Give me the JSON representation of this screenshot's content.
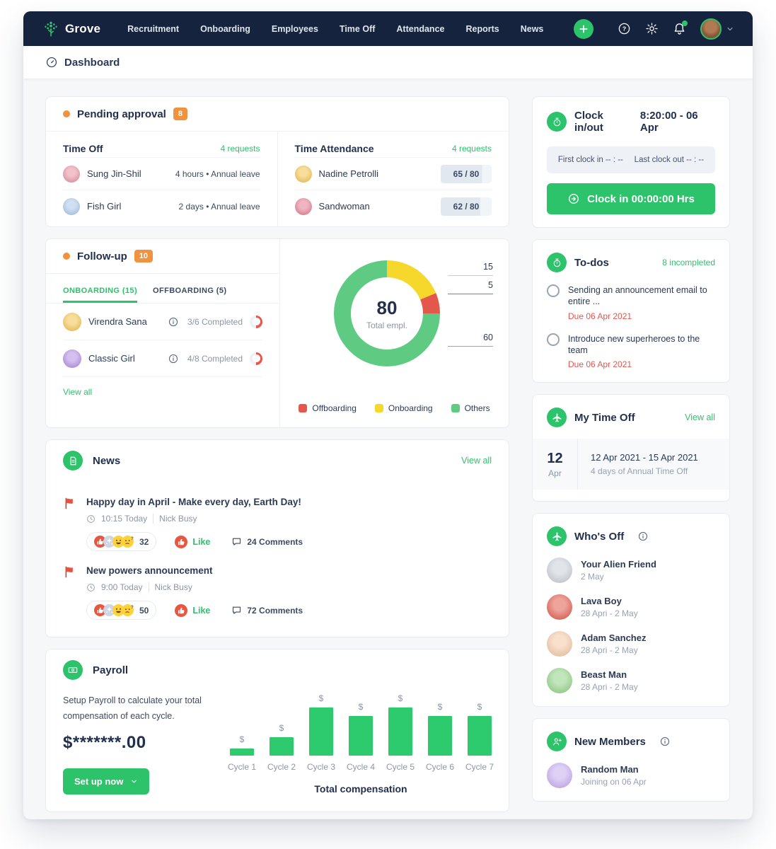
{
  "nav": {
    "brand": "Grove",
    "items": [
      "Recruitment",
      "Onboarding",
      "Employees",
      "Time Off",
      "Attendance",
      "Reports",
      "News"
    ]
  },
  "breadcrumb": {
    "title": "Dashboard"
  },
  "pending_approval": {
    "title": "Pending approval",
    "badge": "8",
    "time_off": {
      "title": "Time Off",
      "count_label": "4 requests",
      "rows": [
        {
          "name": "Sung Jin-Shil",
          "detail": "4 hours • Annual leave",
          "avatar_color": "#e58fa0"
        },
        {
          "name": "Fish Girl",
          "detail": "2 days • Annual leave",
          "avatar_color": "#a9c6e8"
        }
      ]
    },
    "time_attendance": {
      "title": "Time Attendance",
      "count_label": "4 requests",
      "rows": [
        {
          "name": "Nadine Petrolli",
          "value": "65 / 80",
          "pct": 81,
          "avatar_color": "#f2c24b"
        },
        {
          "name": "Sandwoman",
          "value": "62 / 80",
          "pct": 78,
          "avatar_color": "#e2798f"
        }
      ]
    }
  },
  "follow_up": {
    "title": "Follow-up",
    "badge": "10",
    "tabs": [
      {
        "label": "ONBOARDING (15)",
        "active": true
      },
      {
        "label": "OFFBOARDING (5)",
        "active": false
      }
    ],
    "rows": [
      {
        "name": "Virendra Sana",
        "progress_label": "3/6 Completed",
        "pct": 50,
        "avatar_color": "#f2c24b"
      },
      {
        "name": "Classic Girl",
        "progress_label": "4/8 Completed",
        "pct": 50,
        "avatar_color": "#b08ae0"
      }
    ],
    "view_all": "View all"
  },
  "news": {
    "title": "News",
    "view_all": "View all",
    "posts": [
      {
        "title": "Happy day in April - Make every day, Earth Day!",
        "time": "10:15 Today",
        "author": "Nick Busy",
        "reaction_count": "32",
        "like_label": "Like",
        "comments_label": "24 Comments",
        "reaction_emojis": [
          "thumbs-up",
          "confetti",
          "grinning",
          "thinking"
        ]
      },
      {
        "title": "New powers announcement",
        "time": "9:00 Today",
        "author": "Nick Busy",
        "reaction_count": "50",
        "like_label": "Like",
        "comments_label": "72 Comments",
        "reaction_emojis": [
          "thumbs-up",
          "confetti",
          "grinning",
          "thinking"
        ]
      }
    ]
  },
  "payroll": {
    "title": "Payroll",
    "description": "Setup Payroll to calculate your total compensation of each cycle.",
    "amount": "$*******.00",
    "button_label": "Set up now"
  },
  "clock": {
    "title": "Clock in/out",
    "time_label": "8:20:00 - 06 Apr",
    "first_clock_in": "First clock in -- : --",
    "last_clock_out": "Last clock out -- : --",
    "button_label": "Clock in 00:00:00 Hrs"
  },
  "todos": {
    "title": "To-dos",
    "status_label": "8 incompleted",
    "items": [
      {
        "text": "Sending an announcement email to entire ...",
        "due": "Due 06 Apr 2021"
      },
      {
        "text": "Introduce new superheroes to the team",
        "due": "Due 06 Apr 2021"
      }
    ]
  },
  "my_time_off": {
    "title": "My Time Off",
    "view_all": "View all",
    "entry": {
      "day": "12",
      "month": "Apr",
      "range": "12 Apr 2021 - 15 Apr 2021",
      "detail": "4 days of Annual Time Off"
    }
  },
  "whos_off": {
    "title": "Who's Off",
    "rows": [
      {
        "name": "Your Alien Friend",
        "dates": "2 May",
        "avatar_color": "#c9ced6"
      },
      {
        "name": "Lava Boy",
        "dates": "28 Apri - 2 May",
        "avatar_color": "#e05749"
      },
      {
        "name": "Adam Sanchez",
        "dates": "28 Apri - 2 May",
        "avatar_color": "#f2c7a3"
      },
      {
        "name": "Beast Man",
        "dates": "28 Apri - 2 May",
        "avatar_color": "#8fd184"
      }
    ]
  },
  "new_members": {
    "title": "New Members",
    "rows": [
      {
        "name": "Random Man",
        "detail": "Joining on 06 Apr",
        "avatar_color": "#c5a9ef"
      }
    ]
  },
  "colors": {
    "brand_green": "#2CC36B",
    "nav_navy": "#16233E",
    "orange": "#F0923E",
    "red": "#E4574D",
    "yellow": "#F6D72B",
    "donut_green": "#5FCB82"
  },
  "chart_data": [
    {
      "type": "pie",
      "title": "Total empl.",
      "center_value": "80",
      "segments": [
        {
          "label": "Onboarding",
          "value": 15,
          "color": "#F6D72B"
        },
        {
          "label": "Offboarding",
          "value": 5,
          "color": "#E4574D"
        },
        {
          "label": "Others",
          "value": 60,
          "color": "#5FCB82"
        }
      ],
      "legend": [
        {
          "label": "Offboarding",
          "color": "#E4574D"
        },
        {
          "label": "Onboarding",
          "color": "#F6D72B"
        },
        {
          "label": "Others",
          "color": "#5FCB82"
        }
      ],
      "legend_position": "bottom"
    },
    {
      "type": "bar",
      "categories": [
        "Cycle 1",
        "Cycle 2",
        "Cycle 3",
        "Cycle 4",
        "Cycle 5",
        "Cycle 6",
        "Cycle 7"
      ],
      "values": [
        10,
        26,
        68,
        56,
        68,
        56,
        56
      ],
      "bar_label": "$",
      "title": "Total compensation",
      "color": "#2ECB6E",
      "note": "amounts masked on screen; values are relative bar heights"
    }
  ]
}
